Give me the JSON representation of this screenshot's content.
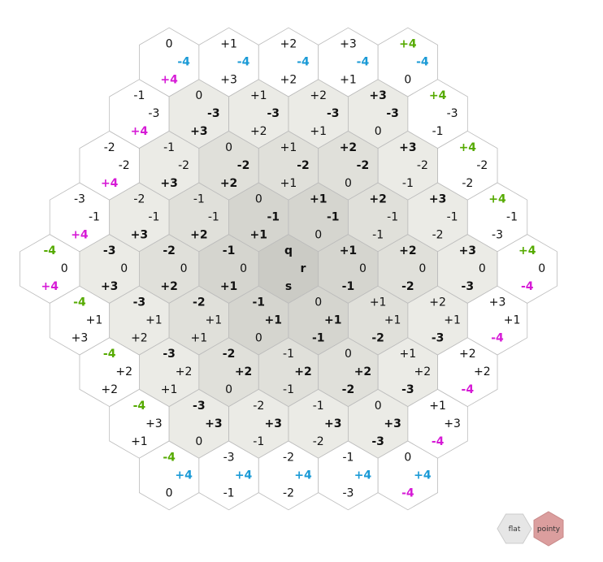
{
  "grid": {
    "radius": 4,
    "center_labels": {
      "q": "q",
      "r": "r",
      "s": "s"
    },
    "colors": {
      "q_axis": "#55aa00",
      "r_axis": "#1a9ad6",
      "s_axis": "#d61ad6",
      "fill_max": "#ffffff",
      "fill_1": "#ebebe6",
      "fill_2": "#e0e0da",
      "fill_3": "#d5d5cf",
      "fill_4": "#cbcbc5",
      "text": "#111111",
      "stroke": "#bbbbbb"
    }
  },
  "toggles": {
    "flat": {
      "label": "flat",
      "fill": "#e6e6e6",
      "stroke": "#cccccc"
    },
    "pointy": {
      "label": "pointy",
      "fill": "#db9e9e",
      "stroke": "#c88888"
    }
  }
}
